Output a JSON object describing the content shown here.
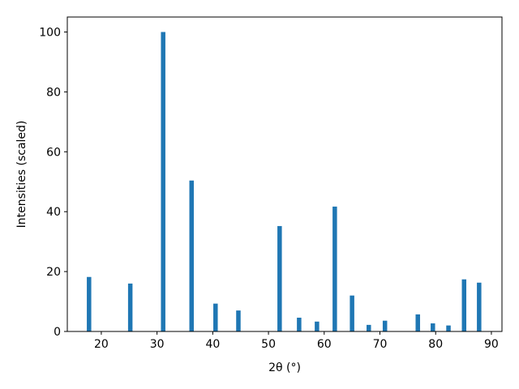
{
  "chart_data": {
    "type": "bar",
    "xlabel": "2θ (°)",
    "ylabel": "Intensities (scaled)",
    "x": [
      17.8,
      25.2,
      31.1,
      36.2,
      40.5,
      44.6,
      52.0,
      55.5,
      58.7,
      61.9,
      65.0,
      68.0,
      70.9,
      76.8,
      79.5,
      82.3,
      85.1,
      87.8
    ],
    "values": [
      18.2,
      16,
      100,
      50.4,
      9.3,
      7,
      35.2,
      4.6,
      3.3,
      41.7,
      12,
      2.2,
      3.6,
      5.7,
      2.7,
      2,
      17.4,
      16.3
    ],
    "color": "#1f77b4",
    "xlim": [
      13.9,
      91.9
    ],
    "xticks": [
      20,
      30,
      40,
      50,
      60,
      70,
      80,
      90
    ],
    "ylim": [
      0,
      105
    ],
    "yticks": [
      0,
      20,
      40,
      60,
      80,
      100
    ],
    "grid": false
  }
}
